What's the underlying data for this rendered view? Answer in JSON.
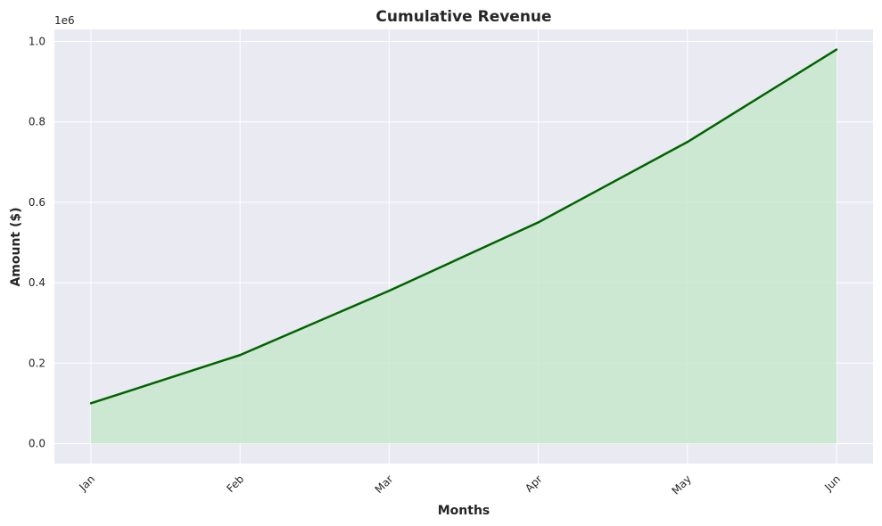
{
  "chart_data": {
    "type": "area",
    "title": "Cumulative Revenue",
    "xlabel": "Months",
    "ylabel": "Amount ($)",
    "y_offset_label": "1e6",
    "categories": [
      "Jan",
      "Feb",
      "Mar",
      "Apr",
      "May",
      "Jun"
    ],
    "values": [
      100000,
      220000,
      380000,
      550000,
      750000,
      980000
    ],
    "ylim": [
      -50000,
      1030000
    ],
    "yticks": [
      0,
      200000,
      400000,
      600000,
      800000,
      1000000
    ],
    "ytick_labels": [
      "0.0",
      "0.2",
      "0.4",
      "0.6",
      "0.8",
      "1.0"
    ],
    "grid": true,
    "colors": {
      "line": "#006400",
      "fill": "#c8e8cc",
      "plot_background": "#eaeaf2",
      "grid": "#ffffff"
    }
  }
}
